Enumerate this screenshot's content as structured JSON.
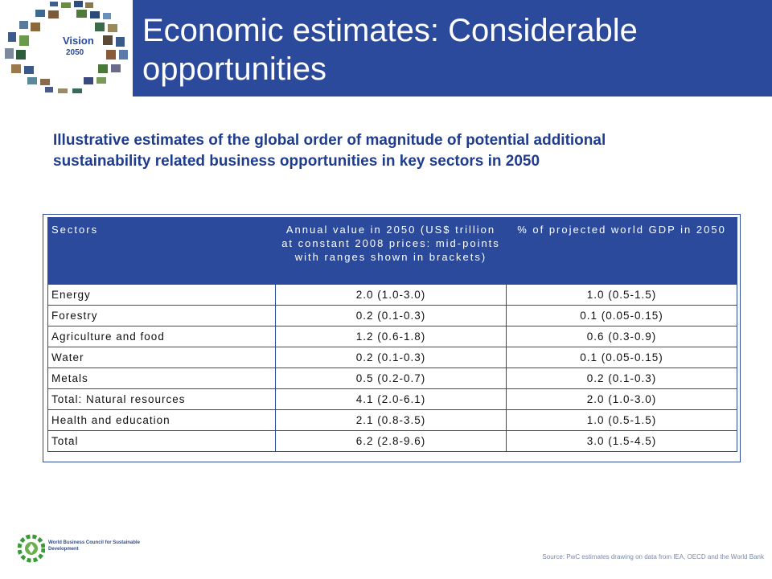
{
  "header": {
    "title": "Economic estimates: Considerable opportunities",
    "logo_text_1": "Vision",
    "logo_text_2": "2050"
  },
  "subtitle": "Illustrative estimates of the global order of magnitude of potential additional sustainability related business opportunities in key sectors in 2050",
  "table": {
    "headers": [
      "Sectors",
      "Annual value in 2050 (US$ trillion at constant 2008 prices: mid-points with ranges shown in brackets)",
      "% of projected world GDP in 2050"
    ],
    "rows": [
      [
        "Energy",
        "2.0 (1.0-3.0)",
        "1.0 (0.5-1.5)"
      ],
      [
        "Forestry",
        "0.2 (0.1-0.3)",
        "0.1 (0.05-0.15)"
      ],
      [
        "Agriculture and food",
        "1.2 (0.6-1.8)",
        "0.6 (0.3-0.9)"
      ],
      [
        "Water",
        "0.2 (0.1-0.3)",
        "0.1 (0.05-0.15)"
      ],
      [
        "Metals",
        "0.5 (0.2-0.7)",
        "0.2 (0.1-0.3)"
      ],
      [
        "Total: Natural resources",
        "4.1 (2.0-6.1)",
        "2.0 (1.0-3.0)"
      ],
      [
        "Health and education",
        "2.1 (0.8-3.5)",
        "1.0 (0.5-1.5)"
      ],
      [
        "Total",
        "6.2 (2.8-9.6)",
        "3.0 (1.5-4.5)"
      ]
    ]
  },
  "footer": {
    "org_name": "World Business Council for Sustainable Development",
    "source": "Source: PwC estimates drawing on data from IEA, OECD and the World Bank"
  },
  "colors": {
    "brand_blue": "#2b4a9b",
    "subtitle_blue": "#1f3d8c"
  }
}
